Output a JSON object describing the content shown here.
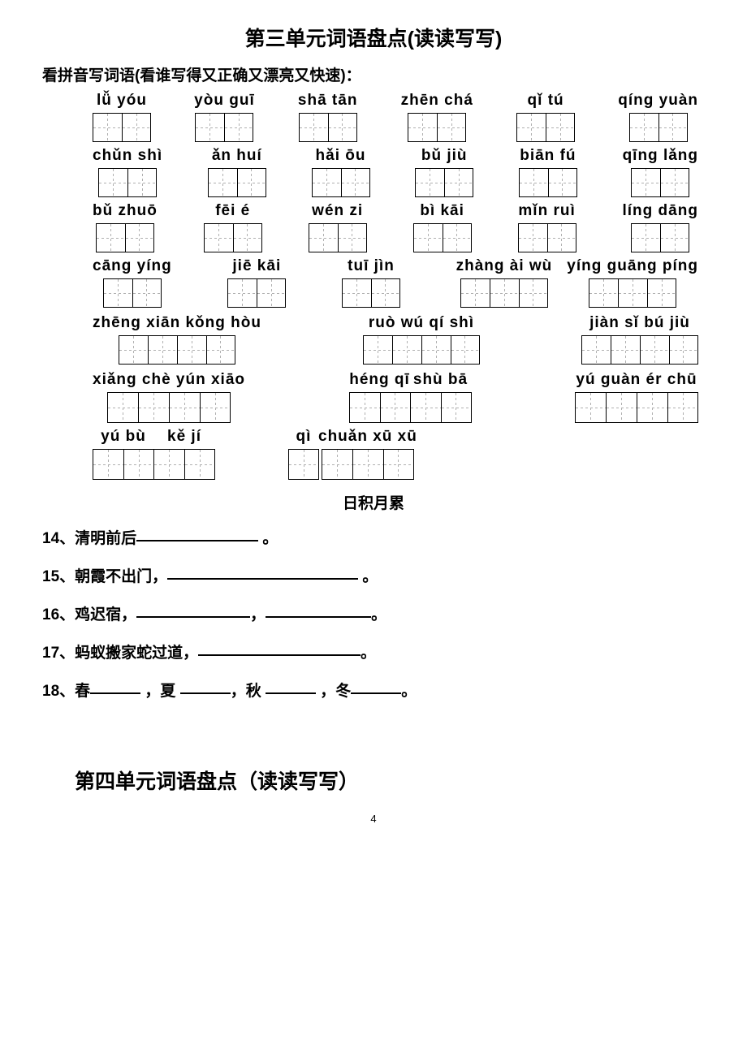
{
  "title_main": "第三单元词语盘点(读读写写)",
  "subhead": "看拼音写词语(看谁写得又正确又漂亮又快速)：",
  "rows": [
    {
      "cells": [
        {
          "pinyin": "lǚ  yóu",
          "boxes": 2
        },
        {
          "pinyin": "yòu guī",
          "boxes": 2
        },
        {
          "pinyin": "shā tān",
          "boxes": 2
        },
        {
          "pinyin": "zhēn chá",
          "boxes": 2
        },
        {
          "pinyin": "qǐ tú",
          "boxes": 2
        },
        {
          "pinyin": "qíng yuàn",
          "boxes": 2
        }
      ]
    },
    {
      "cells": [
        {
          "pinyin": "chǔn shì",
          "boxes": 2
        },
        {
          "pinyin": "ǎn huí",
          "boxes": 2
        },
        {
          "pinyin": "hǎi ōu",
          "boxes": 2
        },
        {
          "pinyin": "bǔ jiù",
          "boxes": 2
        },
        {
          "pinyin": "biān fú",
          "boxes": 2
        },
        {
          "pinyin": "qīng lǎng",
          "boxes": 2
        }
      ]
    },
    {
      "cells": [
        {
          "pinyin": "bǔ zhuō",
          "boxes": 2
        },
        {
          "pinyin": "fēi   é",
          "boxes": 2
        },
        {
          "pinyin": "wén zi",
          "boxes": 2
        },
        {
          "pinyin": "bì kāi",
          "boxes": 2
        },
        {
          "pinyin": "mǐn ruì",
          "boxes": 2
        },
        {
          "pinyin": "líng dāng",
          "boxes": 2
        }
      ]
    }
  ],
  "row4": {
    "c1": {
      "pinyin": "cāng yíng",
      "boxes": 2
    },
    "c2": {
      "pinyin": "jiē kāi",
      "boxes": 2
    },
    "c3": {
      "pinyin": "tuī jìn",
      "boxes": 2
    },
    "g1": {
      "pinyin": "zhàng ài wù",
      "boxes": 3
    },
    "g2": {
      "pinyin": "yíng guāng píng",
      "boxes": 3
    }
  },
  "row5": {
    "c1": {
      "pinyin": "zhēng xiān kǒng hòu",
      "boxes": 4
    },
    "c2": {
      "pinyin": "ruò wú qí shì",
      "boxes": 4
    },
    "c3": {
      "pinyin": "jiàn sǐ bú jiù",
      "boxes": 4
    }
  },
  "row6": {
    "c1": {
      "pinyin": "xiǎng chè yún xiāo",
      "boxes": 4
    },
    "c2a": {
      "pinyin": "héng qī",
      "boxes": 2
    },
    "c2b": {
      "pinyin": "shù  bā",
      "boxes": 2
    },
    "c3": {
      "pinyin": "yú guàn ér chū",
      "boxes": 4
    }
  },
  "row7": {
    "c1a": {
      "pinyin": "yú  bù",
      "boxes": 2
    },
    "c1b": {
      "pinyin": "kě  jí",
      "boxes": 2
    },
    "c2a": {
      "pinyin": "qì",
      "boxes": 1
    },
    "c2b": {
      "pinyin": "chuǎn xū xū",
      "boxes": 3
    }
  },
  "section_heading": "日积月累",
  "fills": {
    "l14a": "14、清明前后",
    "l14b": " 。",
    "l15a": "15、朝霞不出门，",
    "l15b": " 。",
    "l16a": "16、鸡迟宿，",
    "l16b": "，",
    "l16c": "。",
    "l17a": "17、蚂蚁搬家蛇过道，",
    "l17b": "。",
    "l18a": "18、春",
    "l18b": " ，夏 ",
    "l18c": "，秋 ",
    "l18d": " ，冬",
    "l18e": "。"
  },
  "blanks": {
    "w14": 150,
    "w15": 235,
    "w16a": 140,
    "w16b": 130,
    "w17": 200,
    "w18": 62
  },
  "title_unit4": "第四单元词语盘点（读读写写）",
  "page_number": "4",
  "colors": {
    "text": "#000000",
    "bg": "#ffffff",
    "dash": "#b0b0b0"
  },
  "fonts": {
    "heading_pt": 25,
    "body_pt": 19,
    "footer_pt": 13
  }
}
